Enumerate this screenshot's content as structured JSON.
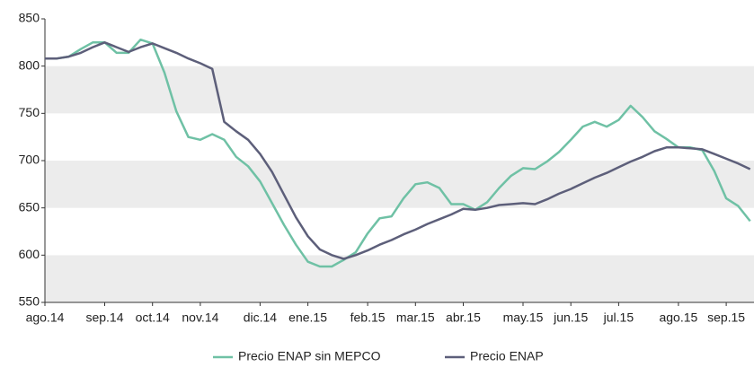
{
  "chart_data": {
    "type": "line",
    "categories": [
      "ago.14",
      null,
      null,
      null,
      null,
      "sep.14",
      null,
      null,
      null,
      "oct.14",
      null,
      null,
      null,
      "nov.14",
      null,
      null,
      null,
      null,
      "dic.14",
      null,
      null,
      null,
      "ene.15",
      null,
      null,
      null,
      null,
      "feb.15",
      null,
      null,
      null,
      "mar.15",
      null,
      null,
      null,
      "abr.15",
      null,
      null,
      null,
      null,
      "may.15",
      null,
      null,
      null,
      "jun.15",
      null,
      null,
      null,
      "jul.15",
      null,
      null,
      null,
      null,
      "ago.15",
      null,
      null,
      null,
      "sep.15",
      null,
      null
    ],
    "series": [
      {
        "name": "Precio ENAP sin MEPCO",
        "color": "#6fc1a5",
        "values": [
          808,
          808,
          810,
          818,
          825,
          825,
          814,
          814,
          828,
          824,
          793,
          752,
          725,
          722,
          728,
          722,
          704,
          694,
          678,
          655,
          632,
          611,
          593,
          588,
          588,
          595,
          603,
          623,
          639,
          641,
          660,
          675,
          677,
          671,
          654,
          654,
          648,
          656,
          671,
          684,
          692,
          691,
          699,
          709,
          722,
          736,
          741,
          736,
          743,
          758,
          746,
          731,
          723,
          714,
          714,
          711,
          689,
          660,
          652,
          636
        ]
      },
      {
        "name": "Precio ENAP",
        "color": "#5d5f7a",
        "values": [
          808,
          808,
          810,
          814,
          820,
          825,
          820,
          815,
          820,
          824,
          819,
          814,
          808,
          803,
          797,
          741,
          731,
          722,
          707,
          688,
          664,
          640,
          620,
          606,
          600,
          596,
          600,
          605,
          611,
          616,
          622,
          627,
          633,
          638,
          643,
          649,
          648,
          650,
          653,
          654,
          655,
          654,
          659,
          665,
          670,
          676,
          682,
          687,
          693,
          699,
          704,
          710,
          714,
          714,
          713,
          712,
          707,
          702,
          697,
          691
        ]
      }
    ],
    "ylim": [
      550,
      850
    ],
    "yticks": [
      550,
      600,
      650,
      700,
      750,
      800,
      850
    ],
    "grid": "bands",
    "legend": "bottom"
  }
}
